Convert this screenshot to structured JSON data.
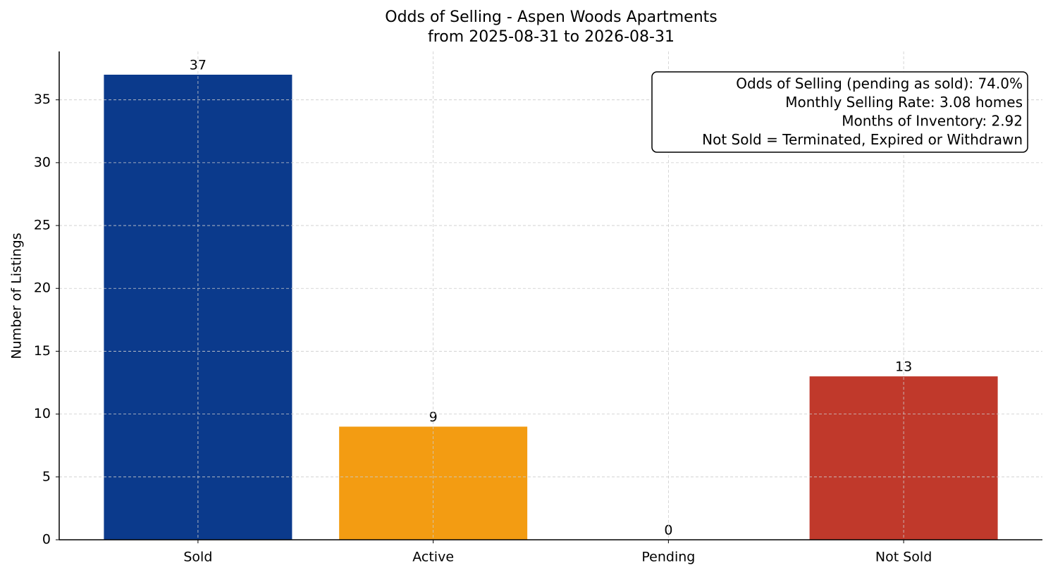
{
  "chart_data": {
    "type": "bar",
    "title": "Odds of Selling - Aspen Woods Apartments",
    "subtitle": "from 2025-08-31 to 2026-08-31",
    "y_label": "Number of Listings",
    "categories": [
      "Sold",
      "Active",
      "Pending",
      "Not Sold"
    ],
    "values": [
      37,
      9,
      0,
      13
    ],
    "colors": [
      "#0b3a8c",
      "#f39c12",
      "#0b3a8c",
      "#c0392b"
    ],
    "ylim": [
      0,
      38.85
    ],
    "yticks": [
      0,
      5,
      10,
      15,
      20,
      25,
      30,
      35
    ],
    "grid": true,
    "annotation": [
      "Odds of Selling (pending as sold): 74.0%",
      "Monthly Selling Rate: 3.08 homes",
      "Months of Inventory: 2.92",
      "Not Sold = Terminated, Expired or Withdrawn"
    ]
  }
}
